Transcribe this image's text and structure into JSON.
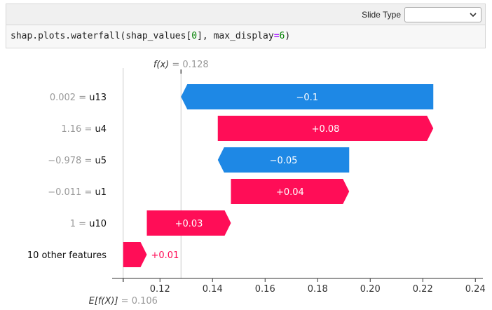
{
  "toolbar": {
    "slide_type_label": "Slide Type",
    "slide_type_value": ""
  },
  "cell": {
    "code_pre": "shap.plots.waterfall(shap_values[",
    "code_index": "0",
    "code_mid": "], max_display",
    "code_op": "=",
    "code_num": "6",
    "code_post": ")"
  },
  "chart_data": {
    "type": "waterfall",
    "fx_label": "f(x)",
    "fx_value": "= 0.128",
    "efx_label": "E[f(X)]",
    "efx_value": "= 0.106",
    "base_value": 0.106,
    "final_value": 0.128,
    "xlim": [
      0.105,
      0.245
    ],
    "ticks": [
      0.12,
      0.14,
      0.16,
      0.18,
      0.2,
      0.22,
      0.24
    ],
    "tick_labels": [
      "0.12",
      "0.14",
      "0.16",
      "0.18",
      "0.20",
      "0.22",
      "0.24"
    ],
    "rows": [
      {
        "value_text": "0.002",
        "feature": "u13",
        "label_text": "−0.1",
        "start": 0.224,
        "end": 0.128
      },
      {
        "value_text": "1.16",
        "feature": "u4",
        "label_text": "+0.08",
        "start": 0.142,
        "end": 0.224
      },
      {
        "value_text": "−0.978",
        "feature": "u5",
        "label_text": "−0.05",
        "start": 0.192,
        "end": 0.142
      },
      {
        "value_text": "−0.011",
        "feature": "u1",
        "label_text": "+0.04",
        "start": 0.147,
        "end": 0.192
      },
      {
        "value_text": "1",
        "feature": "u10",
        "label_text": "+0.03",
        "start": 0.115,
        "end": 0.147
      },
      {
        "value_text": "",
        "feature": "10 other features",
        "label_text": "+0.01",
        "start": 0.106,
        "end": 0.115
      }
    ],
    "colors": {
      "positive": "#ff0d57",
      "negative": "#1e88e5",
      "muted": "#999999",
      "text": "#333333"
    }
  }
}
